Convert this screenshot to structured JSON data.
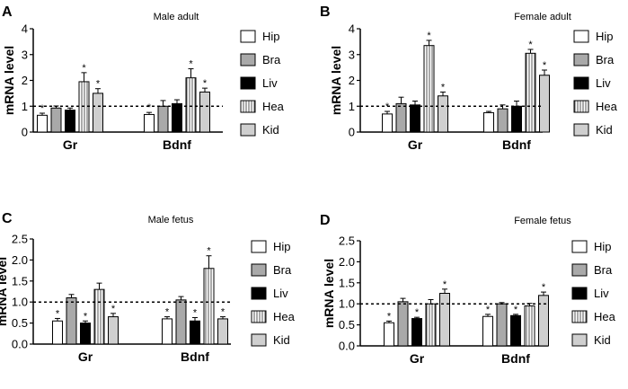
{
  "chart_data": [
    {
      "type": "bar",
      "panel": "A",
      "title": "Male adult",
      "ylabel": "mRNA level",
      "ylim": [
        0,
        4
      ],
      "yticks": [
        "0",
        "1",
        "2",
        "3",
        "4"
      ],
      "categories": [
        "Gr",
        "Bdnf"
      ],
      "reference_line": 1.0,
      "series": [
        {
          "name": "Hip",
          "values": [
            0.65,
            0.68
          ],
          "errors": [
            0.08,
            0.08
          ],
          "sig": [
            true,
            true
          ]
        },
        {
          "name": "Bra",
          "values": [
            0.93,
            1.0
          ],
          "errors": [
            0.08,
            0.22
          ],
          "sig": [
            false,
            false
          ]
        },
        {
          "name": "Liv",
          "values": [
            0.85,
            1.1
          ],
          "errors": [
            0.08,
            0.15
          ],
          "sig": [
            false,
            false
          ]
        },
        {
          "name": "Hea",
          "values": [
            1.95,
            2.1
          ],
          "errors": [
            0.35,
            0.35
          ],
          "sig": [
            true,
            true
          ]
        },
        {
          "name": "Kid",
          "values": [
            1.5,
            1.55
          ],
          "errors": [
            0.18,
            0.15
          ],
          "sig": [
            true,
            true
          ]
        }
      ]
    },
    {
      "type": "bar",
      "panel": "B",
      "title": "Female adult",
      "ylabel": "mRNA level",
      "ylim": [
        0,
        4
      ],
      "yticks": [
        "0",
        "1",
        "2",
        "3",
        "4"
      ],
      "categories": [
        "Gr",
        "Bdnf"
      ],
      "reference_line": 1.0,
      "series": [
        {
          "name": "Hip",
          "values": [
            0.7,
            0.75
          ],
          "errors": [
            0.1,
            0.05
          ],
          "sig": [
            true,
            false
          ]
        },
        {
          "name": "Bra",
          "values": [
            1.1,
            0.9
          ],
          "errors": [
            0.25,
            0.15
          ],
          "sig": [
            false,
            false
          ]
        },
        {
          "name": "Liv",
          "values": [
            1.05,
            1.0
          ],
          "errors": [
            0.15,
            0.2
          ],
          "sig": [
            false,
            false
          ]
        },
        {
          "name": "Hea",
          "values": [
            3.35,
            3.05
          ],
          "errors": [
            0.2,
            0.15
          ],
          "sig": [
            true,
            true
          ]
        },
        {
          "name": "Kid",
          "values": [
            1.4,
            2.2
          ],
          "errors": [
            0.15,
            0.2
          ],
          "sig": [
            true,
            true
          ]
        }
      ]
    },
    {
      "type": "bar",
      "panel": "C",
      "title": "Male fetus",
      "ylabel": "mRNA level",
      "ylim": [
        0,
        2.5
      ],
      "yticks": [
        "0.0",
        "0.5",
        "1.0",
        "1.5",
        "2.0",
        "2.5"
      ],
      "categories": [
        "Gr",
        "Bdnf"
      ],
      "reference_line": 1.0,
      "series": [
        {
          "name": "Hip",
          "values": [
            0.55,
            0.6
          ],
          "errors": [
            0.06,
            0.05
          ],
          "sig": [
            true,
            true
          ]
        },
        {
          "name": "Bra",
          "values": [
            1.1,
            1.05
          ],
          "errors": [
            0.08,
            0.08
          ],
          "sig": [
            false,
            false
          ]
        },
        {
          "name": "Liv",
          "values": [
            0.5,
            0.55
          ],
          "errors": [
            0.05,
            0.08
          ],
          "sig": [
            true,
            true
          ]
        },
        {
          "name": "Hea",
          "values": [
            1.3,
            1.8
          ],
          "errors": [
            0.15,
            0.3
          ],
          "sig": [
            false,
            true
          ]
        },
        {
          "name": "Kid",
          "values": [
            0.65,
            0.6
          ],
          "errors": [
            0.08,
            0.05
          ],
          "sig": [
            true,
            true
          ]
        }
      ]
    },
    {
      "type": "bar",
      "panel": "D",
      "title": "Female fetus",
      "ylabel": "mRNA level",
      "ylim": [
        0,
        2.5
      ],
      "yticks": [
        "0.0",
        "0.5",
        "1.0",
        "1.5",
        "2.0",
        "2.5"
      ],
      "categories": [
        "Gr",
        "Bdnf"
      ],
      "reference_line": 1.0,
      "series": [
        {
          "name": "Hip",
          "values": [
            0.55,
            0.7
          ],
          "errors": [
            0.04,
            0.05
          ],
          "sig": [
            true,
            true
          ]
        },
        {
          "name": "Bra",
          "values": [
            1.05,
            1.0
          ],
          "errors": [
            0.08,
            0.03
          ],
          "sig": [
            false,
            false
          ]
        },
        {
          "name": "Liv",
          "values": [
            0.65,
            0.72
          ],
          "errors": [
            0.03,
            0.03
          ],
          "sig": [
            true,
            true
          ]
        },
        {
          "name": "Hea",
          "values": [
            1.0,
            0.95
          ],
          "errors": [
            0.1,
            0.06
          ],
          "sig": [
            false,
            false
          ]
        },
        {
          "name": "Kid",
          "values": [
            1.25,
            1.2
          ],
          "errors": [
            0.1,
            0.08
          ],
          "sig": [
            true,
            true
          ]
        }
      ]
    }
  ],
  "legend": [
    "Hip",
    "Bra",
    "Liv",
    "Hea",
    "Kid"
  ],
  "significance_marker": "*"
}
